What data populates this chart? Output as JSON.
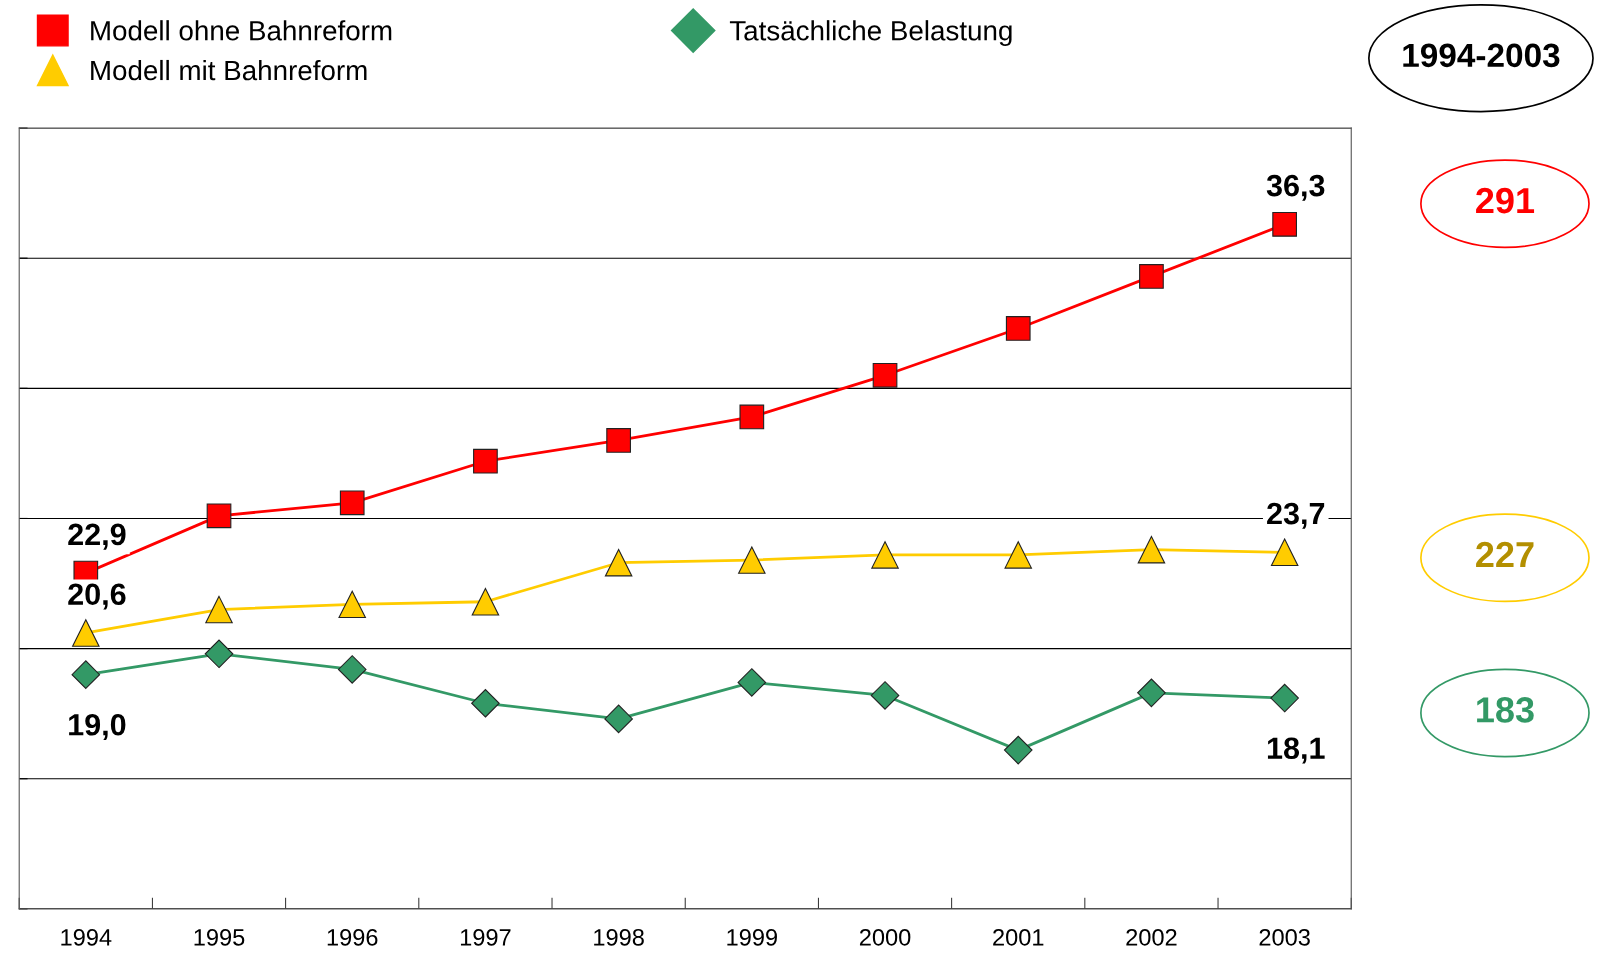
{
  "chart_data": {
    "type": "line",
    "categories": [
      "1994",
      "1995",
      "1996",
      "1997",
      "1998",
      "1999",
      "2000",
      "2001",
      "2002",
      "2003"
    ],
    "series": [
      {
        "name": "Modell ohne Bahnreform",
        "color": "#ff0000",
        "marker": "square",
        "values": [
          22.9,
          25.1,
          25.6,
          27.2,
          28.0,
          28.9,
          30.5,
          32.3,
          34.3,
          36.3
        ],
        "value_labels": [
          "22,9",
          null,
          null,
          null,
          null,
          null,
          null,
          null,
          null,
          "36,3"
        ]
      },
      {
        "name": "Modell mit Bahnreform",
        "color": "#ffcc00",
        "marker": "triangle",
        "values": [
          20.6,
          21.5,
          21.7,
          21.8,
          23.3,
          23.4,
          23.6,
          23.6,
          23.8,
          23.7
        ],
        "value_labels": [
          "20,6",
          null,
          null,
          null,
          null,
          null,
          null,
          null,
          null,
          "23,7"
        ]
      },
      {
        "name": "Tatsächliche Belastung",
        "color": "#339966",
        "marker": "diamond",
        "values": [
          19.0,
          19.8,
          19.2,
          17.9,
          17.3,
          18.7,
          18.2,
          16.1,
          18.3,
          18.1
        ],
        "value_labels": [
          "19,0",
          null,
          null,
          null,
          null,
          null,
          null,
          null,
          null,
          "18,1"
        ]
      }
    ],
    "ylim": [
      10,
      40
    ],
    "yticks": [
      {
        "value": 10,
        "label": null
      },
      {
        "value": 15,
        "label": null
      },
      {
        "value": 20,
        "label": null
      },
      {
        "value": 25,
        "label": null
      },
      {
        "value": 30,
        "label": null
      },
      {
        "value": 35,
        "label": null
      },
      {
        "value": 40,
        "label": null
      }
    ],
    "tick_labels": "x",
    "grid": "y",
    "legend": "top left",
    "line_style": "solid",
    "annotations": [
      "1994-2003",
      "291",
      "227",
      "183"
    ]
  }
}
